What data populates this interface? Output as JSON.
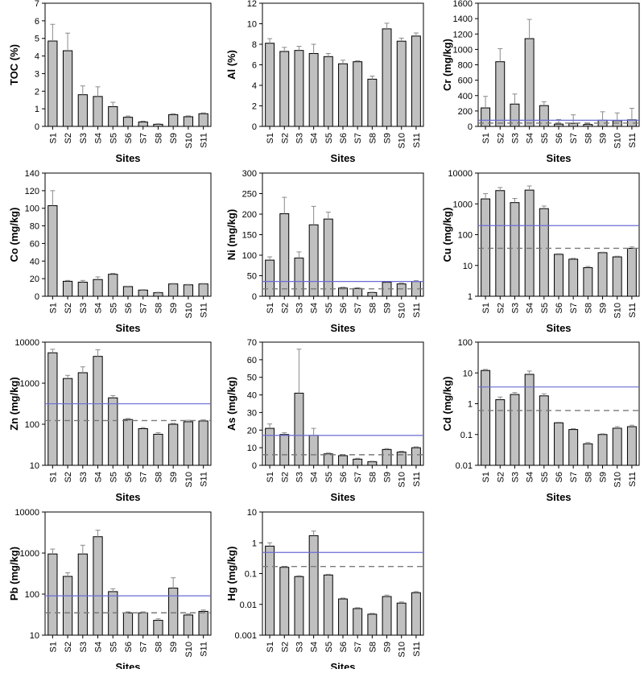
{
  "chart_data": [
    {
      "type": "bar",
      "ylabel": "TOC (%)",
      "xlabel": "Sites",
      "scale": "linear",
      "ylim": [
        0,
        7
      ],
      "yticks": [
        0,
        1,
        2,
        3,
        4,
        5,
        6,
        7
      ],
      "yticklabels": [
        "0",
        "1",
        "2",
        "3",
        "4",
        "5",
        "6",
        "7"
      ],
      "categories": [
        "S1",
        "S2",
        "S3",
        "S4",
        "S5",
        "S6",
        "S7",
        "S8",
        "S9",
        "S10",
        "S11"
      ],
      "values": [
        4.85,
        4.3,
        1.8,
        1.7,
        1.12,
        0.52,
        0.25,
        0.12,
        0.67,
        0.55,
        0.72
      ],
      "errors": [
        0.95,
        1.0,
        0.5,
        0.55,
        0.25,
        0.07,
        0.05,
        0.03,
        0.05,
        0.05,
        0.05
      ],
      "guideline_solid": null,
      "guideline_dashed": null
    },
    {
      "type": "bar",
      "ylabel": "Al (%)",
      "xlabel": "Sites",
      "scale": "linear",
      "ylim": [
        0,
        12
      ],
      "yticks": [
        0,
        2,
        4,
        6,
        8,
        10,
        12
      ],
      "yticklabels": [
        "0",
        "2",
        "4",
        "6",
        "8",
        "10",
        "12"
      ],
      "categories": [
        "S1",
        "S2",
        "S3",
        "S4",
        "S5",
        "S6",
        "S7",
        "S8",
        "S9",
        "S10",
        "S11"
      ],
      "values": [
        8.1,
        7.3,
        7.4,
        7.1,
        6.8,
        6.1,
        6.3,
        4.6,
        9.5,
        8.3,
        8.8
      ],
      "errors": [
        0.45,
        0.4,
        0.4,
        0.9,
        0.3,
        0.35,
        0.1,
        0.3,
        0.55,
        0.3,
        0.3
      ],
      "guideline_solid": null,
      "guideline_dashed": null
    },
    {
      "type": "bar",
      "ylabel": "Cr (mg/kg)",
      "xlabel": "Sites",
      "scale": "linear",
      "ylim": [
        0,
        1600
      ],
      "yticks": [
        0,
        200,
        400,
        600,
        800,
        1000,
        1200,
        1400,
        1600
      ],
      "yticklabels": [
        "0",
        "200",
        "400",
        "600",
        "800",
        "1000",
        "1200",
        "1400",
        "1600"
      ],
      "categories": [
        "S1",
        "S2",
        "S3",
        "S4",
        "S5",
        "S6",
        "S7",
        "S8",
        "S9",
        "S10",
        "S11"
      ],
      "values": [
        240,
        840,
        290,
        1140,
        270,
        30,
        40,
        25,
        80,
        75,
        85
      ],
      "errors": [
        150,
        170,
        130,
        250,
        50,
        60,
        110,
        10,
        110,
        100,
        150
      ],
      "guideline_solid": 80,
      "guideline_dashed": 43
    },
    {
      "type": "bar",
      "ylabel": "Co (mg/kg)",
      "xlabel": "Sites",
      "scale": "linear",
      "ylim": [
        0,
        140
      ],
      "yticks": [
        0,
        20,
        40,
        60,
        80,
        100,
        120,
        140
      ],
      "yticklabels": [
        "0",
        "20",
        "40",
        "60",
        "80",
        "100",
        "120",
        "140"
      ],
      "categories": [
        "S1",
        "S2",
        "S3",
        "S4",
        "S5",
        "S6",
        "S7",
        "S8",
        "S9",
        "S10",
        "S11"
      ],
      "values": [
        103,
        17,
        16,
        19,
        25,
        11,
        7,
        4,
        14,
        13,
        14
      ],
      "errors": [
        17,
        1,
        2,
        3,
        1,
        0.5,
        0.5,
        0.5,
        0.5,
        0.5,
        0.5
      ],
      "guideline_solid": null,
      "guideline_dashed": null
    },
    {
      "type": "bar",
      "ylabel": "Ni (mg/kg)",
      "xlabel": "Sites",
      "scale": "linear",
      "ylim": [
        0,
        300
      ],
      "yticks": [
        0,
        50,
        100,
        150,
        200,
        250,
        300
      ],
      "yticklabels": [
        "0",
        "50",
        "100",
        "150",
        "200",
        "250",
        "300"
      ],
      "categories": [
        "S1",
        "S2",
        "S3",
        "S4",
        "S5",
        "S6",
        "S7",
        "S8",
        "S9",
        "S10",
        "S11"
      ],
      "values": [
        88,
        201,
        93,
        174,
        188,
        20,
        19,
        9,
        34,
        30,
        36
      ],
      "errors": [
        8,
        40,
        15,
        45,
        17,
        2,
        2,
        1,
        2,
        2,
        2
      ],
      "guideline_solid": 36,
      "guideline_dashed": 18
    },
    {
      "type": "bar",
      "ylabel": "Cu (mg/kg)",
      "xlabel": "Sites",
      "scale": "log",
      "ylim": [
        1,
        10000
      ],
      "yticks": [
        1,
        10,
        100,
        1000,
        10000
      ],
      "yticklabels": [
        "1",
        "10",
        "100",
        "1000",
        "10000"
      ],
      "categories": [
        "S1",
        "S2",
        "S3",
        "S4",
        "S5",
        "S6",
        "S7",
        "S8",
        "S9",
        "S10",
        "S11"
      ],
      "values": [
        1450,
        2700,
        1100,
        2800,
        700,
        23,
        16,
        8.5,
        26,
        19,
        36
      ],
      "errors": [
        700,
        700,
        400,
        1000,
        150,
        1,
        1,
        0.8,
        1,
        1,
        4
      ],
      "guideline_solid": 197,
      "guideline_dashed": 36
    },
    {
      "type": "bar",
      "ylabel": "Zn (mg/kg)",
      "xlabel": "Sites",
      "scale": "log",
      "ylim": [
        10,
        10000
      ],
      "yticks": [
        10,
        100,
        1000,
        10000
      ],
      "yticklabels": [
        "10",
        "100",
        "1000",
        "10000"
      ],
      "categories": [
        "S1",
        "S2",
        "S3",
        "S4",
        "S5",
        "S6",
        "S7",
        "S8",
        "S9",
        "S10",
        "S11"
      ],
      "values": [
        5500,
        1300,
        1800,
        4500,
        440,
        130,
        78,
        57,
        100,
        115,
        120
      ],
      "errors": [
        1200,
        250,
        700,
        2000,
        60,
        8,
        5,
        5,
        5,
        10,
        8
      ],
      "guideline_solid": 315,
      "guideline_dashed": 123
    },
    {
      "type": "bar",
      "ylabel": "As (mg/kg)",
      "xlabel": "Sites",
      "scale": "linear",
      "ylim": [
        0,
        70
      ],
      "yticks": [
        0,
        10,
        20,
        30,
        40,
        50,
        60,
        70
      ],
      "yticklabels": [
        "0",
        "10",
        "20",
        "30",
        "40",
        "50",
        "60",
        "70"
      ],
      "categories": [
        "S1",
        "S2",
        "S3",
        "S4",
        "S5",
        "S6",
        "S7",
        "S8",
        "S9",
        "S10",
        "S11"
      ],
      "values": [
        21,
        17.5,
        41,
        17,
        6.5,
        5.5,
        3.5,
        2,
        9,
        7.5,
        10
      ],
      "errors": [
        2.5,
        1,
        25,
        4,
        0.5,
        0.5,
        0.5,
        0.3,
        0.5,
        0.5,
        0.5
      ],
      "guideline_solid": 17,
      "guideline_dashed": 6
    },
    {
      "type": "bar",
      "ylabel": "Cd (mg/kg)",
      "xlabel": "Sites",
      "scale": "log",
      "ylim": [
        0.01,
        100
      ],
      "yticks": [
        0.01,
        0.1,
        1,
        10,
        100
      ],
      "yticklabels": [
        "0.01",
        "0.1",
        "1",
        "10",
        "100"
      ],
      "categories": [
        "S1",
        "S2",
        "S3",
        "S4",
        "S5",
        "S6",
        "S7",
        "S8",
        "S9",
        "S10",
        "S11"
      ],
      "values": [
        12,
        1.35,
        2,
        9,
        1.8,
        0.24,
        0.145,
        0.05,
        0.1,
        0.16,
        0.18
      ],
      "errors": [
        1,
        0.3,
        0.3,
        2.5,
        0.3,
        0.01,
        0.01,
        0.005,
        0.005,
        0.02,
        0.02
      ],
      "guideline_solid": 3.5,
      "guideline_dashed": 0.6
    },
    {
      "type": "bar",
      "ylabel": "Pb (mg/kg)",
      "xlabel": "Sites",
      "scale": "log",
      "ylim": [
        10,
        10000
      ],
      "yticks": [
        10,
        100,
        1000,
        10000
      ],
      "yticklabels": [
        "10",
        "100",
        "1000",
        "10000"
      ],
      "categories": [
        "S1",
        "S2",
        "S3",
        "S4",
        "S5",
        "S6",
        "S7",
        "S8",
        "S9",
        "S10",
        "S11"
      ],
      "values": [
        950,
        270,
        950,
        2500,
        115,
        35,
        35,
        23,
        140,
        31,
        38
      ],
      "errors": [
        300,
        60,
        600,
        1100,
        20,
        2,
        2,
        2,
        110,
        2,
        3
      ],
      "guideline_solid": 91,
      "guideline_dashed": 35
    },
    {
      "type": "bar",
      "ylabel": "Hg (mg/kg)",
      "xlabel": "Sites",
      "scale": "log",
      "ylim": [
        0.001,
        10
      ],
      "yticks": [
        0.001,
        0.01,
        0.1,
        1,
        10
      ],
      "yticklabels": [
        "0.001",
        "0.01",
        "0.1",
        "1",
        "10"
      ],
      "categories": [
        "S1",
        "S2",
        "S3",
        "S4",
        "S5",
        "S6",
        "S7",
        "S8",
        "S9",
        "S10",
        "S11"
      ],
      "values": [
        0.78,
        0.16,
        0.08,
        1.7,
        0.09,
        0.015,
        0.0073,
        0.0048,
        0.018,
        0.011,
        0.024
      ],
      "errors": [
        0.22,
        0.01,
        0.005,
        0.7,
        0.005,
        0.001,
        0.0005,
        0.0003,
        0.002,
        0.001,
        0.002
      ],
      "guideline_solid": 0.486,
      "guideline_dashed": 0.17
    }
  ],
  "colors": {
    "bar_fill": "#c0c0c0",
    "bar_stroke": "#000000",
    "error_bar": "#8a8a8a",
    "guideline_solid": "#6b6bd6",
    "guideline_dashed": "#7a7a7a",
    "axis": "#000000"
  }
}
